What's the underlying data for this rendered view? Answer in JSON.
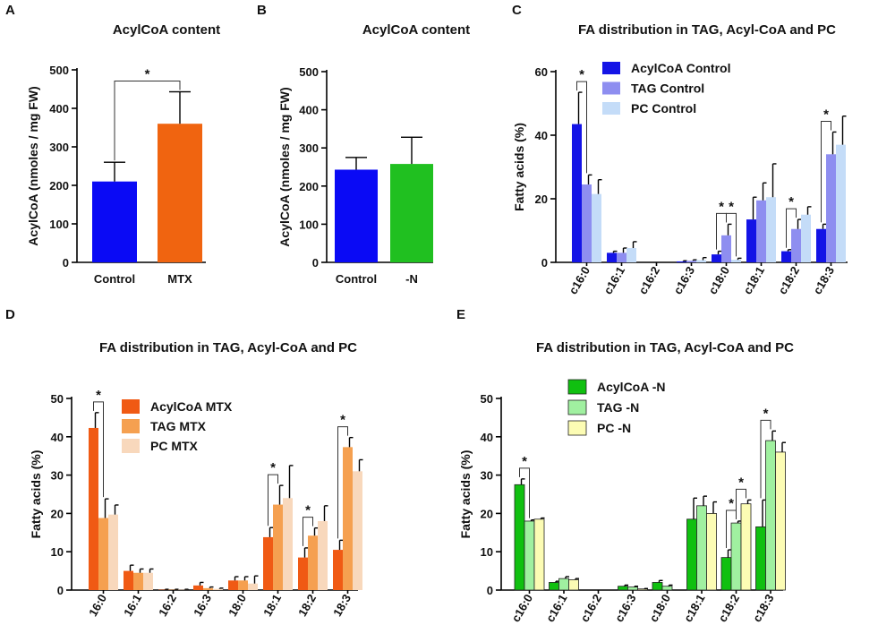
{
  "chart_data": [
    {
      "id": "A",
      "panel_label": "A",
      "type": "bar",
      "title": "AcylCoA content",
      "ylabel": "AcylCoA (nmoles / mg FW)",
      "ylim": [
        0,
        500
      ],
      "yticks": [
        "0",
        "100",
        "200",
        "300",
        "400",
        "500"
      ],
      "categories": [
        "Control",
        "MTX"
      ],
      "series": [
        {
          "name": "AcylCoA",
          "values": [
            210,
            360
          ],
          "errors": [
            50,
            83
          ],
          "colors": [
            "#0a0af5",
            "#f06410"
          ]
        }
      ],
      "significance": [
        {
          "from": 0,
          "to": 1,
          "label": "*"
        }
      ]
    },
    {
      "id": "B",
      "panel_label": "B",
      "type": "bar",
      "title": "AcylCoA content",
      "ylabel": "AcylCoA (nmoles / mg FW)",
      "ylim": [
        0,
        500
      ],
      "yticks": [
        "0",
        "100",
        "200",
        "300",
        "400",
        "500"
      ],
      "categories": [
        "Control",
        "-N"
      ],
      "series": [
        {
          "name": "AcylCoA",
          "values": [
            243,
            258
          ],
          "errors": [
            32,
            70
          ],
          "colors": [
            "#0a0af5",
            "#20c020"
          ]
        }
      ],
      "significance": []
    },
    {
      "id": "C",
      "panel_label": "C",
      "type": "bar",
      "title": "FA distribution in TAG, Acyl-CoA and PC",
      "ylabel": "Fatty acids (%)",
      "ylim": [
        0,
        60
      ],
      "yticks": [
        "0",
        "20",
        "40",
        "60"
      ],
      "categories": [
        "c16:0",
        "c16:1",
        "c16:2",
        "c16:3",
        "c18:0",
        "c18:1",
        "c18:2",
        "c18:3"
      ],
      "series": [
        {
          "name": "AcylCoA Control",
          "color": "#1414e6",
          "values": [
            43.5,
            3.0,
            0,
            0.3,
            2.5,
            13.5,
            3.5,
            10.5
          ],
          "errors": [
            10,
            0.5,
            0,
            0.2,
            1.0,
            7,
            0.5,
            1.5
          ]
        },
        {
          "name": "TAG Control",
          "color": "#8e8ef0",
          "values": [
            24.5,
            3.0,
            0,
            0.5,
            8.5,
            19.5,
            10.5,
            34.0
          ],
          "errors": [
            3,
            1.5,
            0,
            0.3,
            3.5,
            5.5,
            3.0,
            7.0
          ]
        },
        {
          "name": "PC Control",
          "color": "#c4dcf8",
          "values": [
            21.5,
            4.5,
            0,
            0.7,
            0.8,
            20.5,
            15.0,
            37.0
          ],
          "errors": [
            4.5,
            2.0,
            0,
            0.8,
            0.5,
            10.5,
            2.5,
            9.0
          ]
        }
      ],
      "significance": [
        {
          "category": 0,
          "from": 0,
          "to": 1,
          "label": "*"
        },
        {
          "category": 4,
          "from": 0,
          "to": 1,
          "label": "*"
        },
        {
          "category": 4,
          "from": 1,
          "to": 2,
          "label": "*"
        },
        {
          "category": 6,
          "from": 0,
          "to": 1,
          "label": "*"
        },
        {
          "category": 7,
          "from": 0,
          "to": 1,
          "label": "*"
        }
      ],
      "legend_position": "top-right"
    },
    {
      "id": "D",
      "panel_label": "D",
      "type": "bar",
      "title": "FA distribution in TAG, Acyl-CoA and PC",
      "ylabel": "Fatty acids (%)",
      "ylim": [
        0,
        50
      ],
      "yticks": [
        "0",
        "10",
        "20",
        "30",
        "40",
        "50"
      ],
      "categories": [
        "16:0",
        "16:1",
        "16:2",
        "16:3",
        "18:0",
        "18:1",
        "18:2",
        "18:3"
      ],
      "series": [
        {
          "name": "AcylCoA MTX",
          "color": "#f05a14",
          "values": [
            42.3,
            5.0,
            0.1,
            1.2,
            2.5,
            13.8,
            8.5,
            10.5
          ],
          "errors": [
            4,
            1.5,
            0.1,
            0.8,
            1.0,
            2.5,
            2.5,
            2.5
          ]
        },
        {
          "name": "TAG MTX",
          "color": "#f5a050",
          "values": [
            18.8,
            4.5,
            0.1,
            0.5,
            2.5,
            22.3,
            14.2,
            37.3
          ],
          "errors": [
            5,
            1.0,
            0.1,
            0.3,
            1.0,
            5.0,
            2.0,
            2.5
          ]
        },
        {
          "name": "PC MTX",
          "color": "#f8d8bc",
          "values": [
            19.7,
            4.5,
            0.1,
            0.3,
            1.7,
            24.0,
            18.0,
            31.0
          ],
          "errors": [
            2.5,
            1.0,
            0.1,
            0.2,
            2.0,
            8.5,
            4.0,
            3.0
          ]
        }
      ],
      "significance": [
        {
          "category": 0,
          "from": 0,
          "to": 1,
          "label": "*"
        },
        {
          "category": 5,
          "from": 0,
          "to": 1,
          "label": "*"
        },
        {
          "category": 6,
          "from": 0,
          "to": 1,
          "label": "*"
        },
        {
          "category": 7,
          "from": 0,
          "to": 1,
          "label": "*"
        }
      ],
      "legend_position": "top-center"
    },
    {
      "id": "E",
      "panel_label": "E",
      "type": "bar",
      "title": "FA distribution in TAG, Acyl-CoA and PC",
      "ylabel": "Fatty acids (%)",
      "ylim": [
        0,
        50
      ],
      "yticks": [
        "0",
        "10",
        "20",
        "30",
        "40",
        "50"
      ],
      "categories": [
        "c16:0",
        "c16:1",
        "c16:2",
        "c16:3",
        "c18:0",
        "c18:1",
        "c18:2",
        "c18:3"
      ],
      "series": [
        {
          "name": "AcylCoA -N",
          "color": "#10c010",
          "values": [
            27.5,
            2.0,
            0,
            1.0,
            2.0,
            18.5,
            8.5,
            16.5
          ],
          "errors": [
            1.5,
            0.3,
            0,
            0.3,
            0.5,
            5.5,
            2.0,
            7.0
          ]
        },
        {
          "name": "TAG -N",
          "color": "#a0f0a0",
          "values": [
            18.0,
            3.0,
            0,
            0.8,
            1.0,
            22.0,
            17.5,
            39.0
          ],
          "errors": [
            0.3,
            0.5,
            0,
            0.2,
            0.3,
            2.5,
            0.5,
            2.5
          ]
        },
        {
          "name": "PC -N",
          "color": "#fcfcb4",
          "values": [
            18.5,
            2.7,
            0,
            0.3,
            0,
            20.0,
            22.5,
            36.0
          ],
          "errors": [
            0.3,
            0.3,
            0,
            0.1,
            0,
            3.0,
            1.0,
            2.5
          ]
        }
      ],
      "significance": [
        {
          "category": 0,
          "from": 0,
          "to": 1,
          "label": "*"
        },
        {
          "category": 6,
          "from": 0,
          "to": 1,
          "label": "*"
        },
        {
          "category": 6,
          "from": 1,
          "to": 2,
          "label": "*"
        },
        {
          "category": 7,
          "from": 0,
          "to": 1,
          "label": "*"
        }
      ],
      "legend_position": "top-left"
    }
  ]
}
